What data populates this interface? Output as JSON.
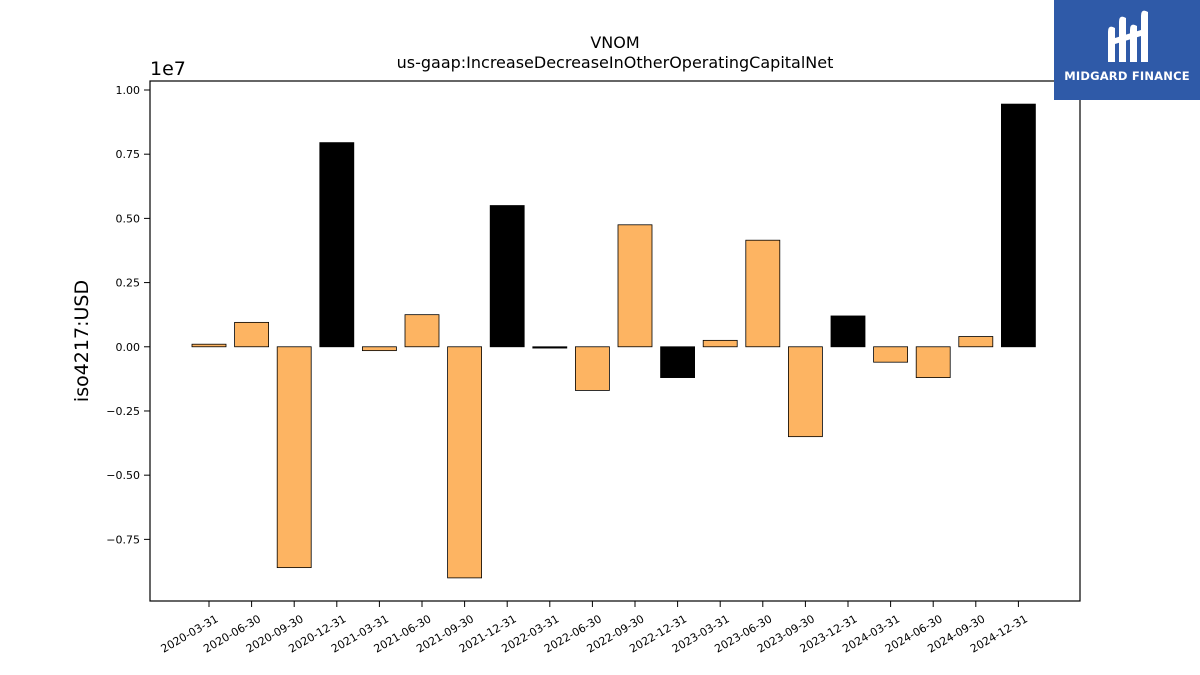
{
  "chart_data": {
    "type": "bar",
    "title": "VNOM",
    "subtitle": "us-gaap:IncreaseDecreaseInOtherOperatingCapitalNet",
    "xlabel": "",
    "ylabel": "iso4217:USD",
    "y_offset_label": "1e7",
    "ylim": [
      -9900000,
      10350000
    ],
    "yticks": [
      -7500000,
      -5000000,
      -2500000,
      0,
      2500000,
      5000000,
      7500000,
      10000000
    ],
    "ytick_labels": [
      "−0.75",
      "−0.50",
      "−0.25",
      "0.00",
      "0.25",
      "0.50",
      "0.75",
      "1.00"
    ],
    "grid": false,
    "categories": [
      "2020-03-31",
      "2020-06-30",
      "2020-09-30",
      "2020-12-31",
      "2021-03-31",
      "2021-06-30",
      "2021-09-30",
      "2021-12-31",
      "2022-03-31",
      "2022-06-30",
      "2022-09-30",
      "2022-12-31",
      "2023-03-31",
      "2023-06-30",
      "2023-09-30",
      "2023-12-31",
      "2024-03-31",
      "2024-06-30",
      "2024-09-30",
      "2024-12-31"
    ],
    "values": [
      100000,
      950000,
      -8600000,
      7950000,
      -150000,
      1250000,
      -9000000,
      5500000,
      -50000,
      -1700000,
      4750000,
      -1200000,
      250000,
      4150000,
      -3500000,
      1200000,
      -600000,
      -1200000,
      400000,
      9450000
    ],
    "colors": [
      "#fdb462",
      "#fdb462",
      "#fdb462",
      "#000000",
      "#fdb462",
      "#fdb462",
      "#fdb462",
      "#000000",
      "#000000",
      "#fdb462",
      "#fdb462",
      "#000000",
      "#fdb462",
      "#fdb462",
      "#fdb462",
      "#000000",
      "#fdb462",
      "#fdb462",
      "#fdb462",
      "#000000"
    ]
  },
  "logo": {
    "text": "MIDGARD FINANCE",
    "icon": "midgard-logo-icon",
    "background": "#2f5aa8"
  }
}
